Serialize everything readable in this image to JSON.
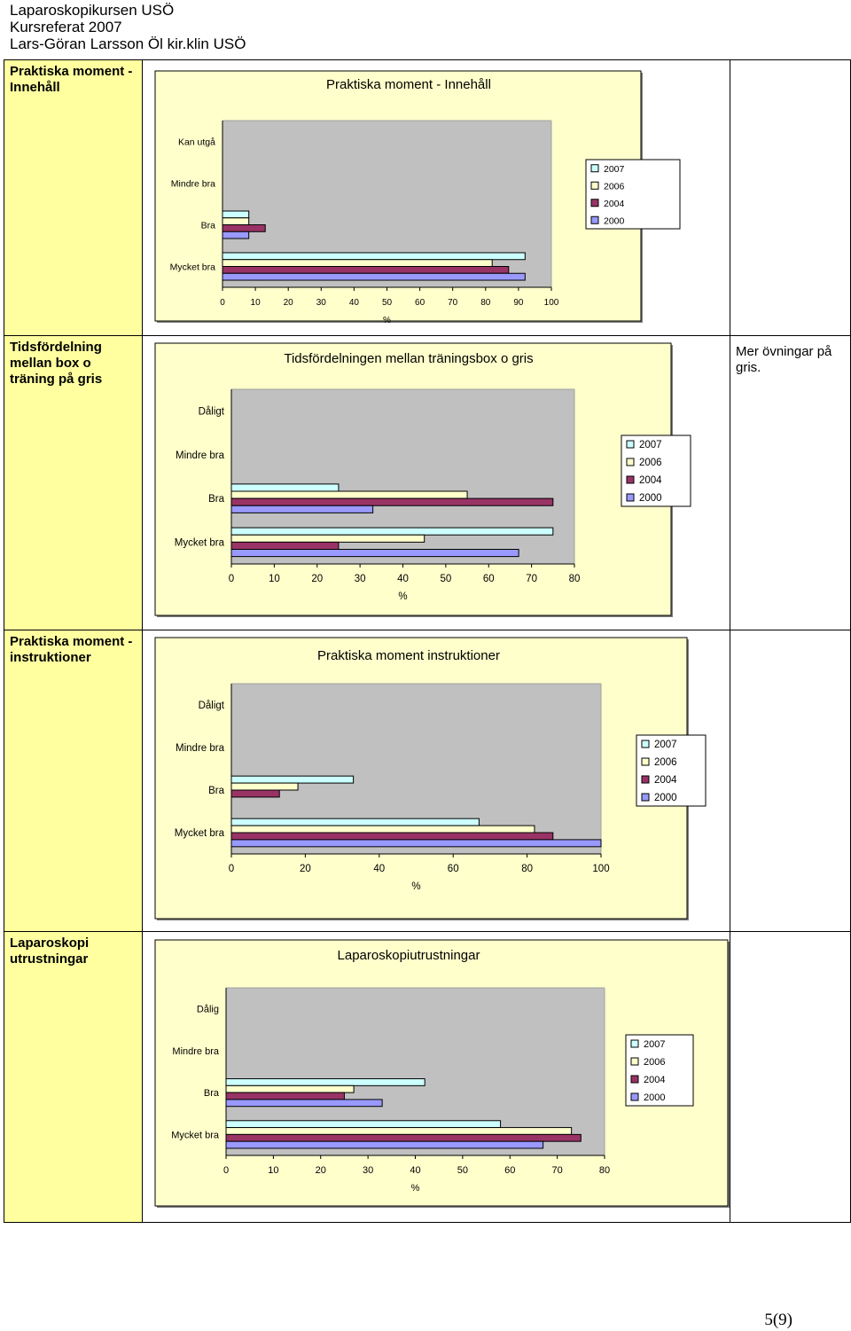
{
  "header": {
    "line1": "Laparoskopikursen USÖ",
    "line2": "Kursreferat 2007",
    "line3": "Lars-Göran Larsson Öl kir.klin USÖ"
  },
  "rows": [
    {
      "label": "Praktiska moment - Innehåll",
      "note": ""
    },
    {
      "label": "Tidsfördelning mellan box o träning på gris",
      "note": "Mer övningar på gris."
    },
    {
      "label": "Praktiska moment - instruktioner",
      "note": ""
    },
    {
      "label": "Laparoskopi utrustningar",
      "note": ""
    }
  ],
  "page_number": "5(9)",
  "colors": {
    "2007": "#ccffff",
    "2006": "#ffffcc",
    "2004": "#993366",
    "2000": "#9999ff",
    "plot_bg": "#c0c0c0",
    "chart_bg": "#ffffcc",
    "label_bg": "#ffffa0"
  },
  "chart_data": [
    {
      "type": "bar",
      "orientation": "horizontal",
      "title": "Praktiska moment - Innehåll",
      "categories": [
        "Mycket bra",
        "Bra",
        "Mindre bra",
        "Kan utgå"
      ],
      "xlabel": "%",
      "xlim": [
        0,
        100
      ],
      "xticks": [
        "0",
        "10",
        "20",
        "30",
        "40",
        "50",
        "60",
        "70",
        "80",
        "90",
        "100"
      ],
      "legend": "right",
      "series": [
        {
          "name": "2007",
          "values": [
            92,
            8,
            0,
            0
          ]
        },
        {
          "name": "2006",
          "values": [
            82,
            8,
            0,
            0
          ]
        },
        {
          "name": "2004",
          "values": [
            87,
            13,
            0,
            0
          ]
        },
        {
          "name": "2000",
          "values": [
            92,
            8,
            0,
            0
          ]
        }
      ]
    },
    {
      "type": "bar",
      "orientation": "horizontal",
      "title": "Tidsfördelningen mellan träningsbox o gris",
      "categories": [
        "Mycket bra",
        "Bra",
        "Mindre bra",
        "Dåligt"
      ],
      "xlabel": "%",
      "xlim": [
        0,
        80
      ],
      "xticks": [
        "0",
        "10",
        "20",
        "30",
        "40",
        "50",
        "60",
        "70",
        "80"
      ],
      "legend": "right",
      "series": [
        {
          "name": "2007",
          "values": [
            75,
            25,
            0,
            0
          ]
        },
        {
          "name": "2006",
          "values": [
            45,
            55,
            0,
            0
          ]
        },
        {
          "name": "2004",
          "values": [
            25,
            75,
            0,
            0
          ]
        },
        {
          "name": "2000",
          "values": [
            67,
            33,
            0,
            0
          ]
        }
      ]
    },
    {
      "type": "bar",
      "orientation": "horizontal",
      "title": "Praktiska moment instruktioner",
      "categories": [
        "Mycket bra",
        "Bra",
        "Mindre bra",
        "Dåligt"
      ],
      "xlabel": "%",
      "xlim": [
        0,
        100
      ],
      "xticks": [
        "0",
        "20",
        "40",
        "60",
        "80",
        "100"
      ],
      "legend": "right",
      "series": [
        {
          "name": "2007",
          "values": [
            67,
            33,
            0,
            0
          ]
        },
        {
          "name": "2006",
          "values": [
            82,
            18,
            0,
            0
          ]
        },
        {
          "name": "2004",
          "values": [
            87,
            13,
            0,
            0
          ]
        },
        {
          "name": "2000",
          "values": [
            100,
            0,
            0,
            0
          ]
        }
      ]
    },
    {
      "type": "bar",
      "orientation": "horizontal",
      "title": "Laparoskopiutrustningar",
      "categories": [
        "Mycket bra",
        "Bra",
        "Mindre bra",
        "Dålig"
      ],
      "xlabel": "%",
      "xlim": [
        0,
        80
      ],
      "xticks": [
        "0",
        "10",
        "20",
        "30",
        "40",
        "50",
        "60",
        "70",
        "80"
      ],
      "legend": "right",
      "series": [
        {
          "name": "2007",
          "values": [
            58,
            42,
            0,
            0
          ]
        },
        {
          "name": "2006",
          "values": [
            73,
            27,
            0,
            0
          ]
        },
        {
          "name": "2004",
          "values": [
            75,
            25,
            0,
            0
          ]
        },
        {
          "name": "2000",
          "values": [
            67,
            33,
            0,
            0
          ]
        }
      ]
    }
  ]
}
